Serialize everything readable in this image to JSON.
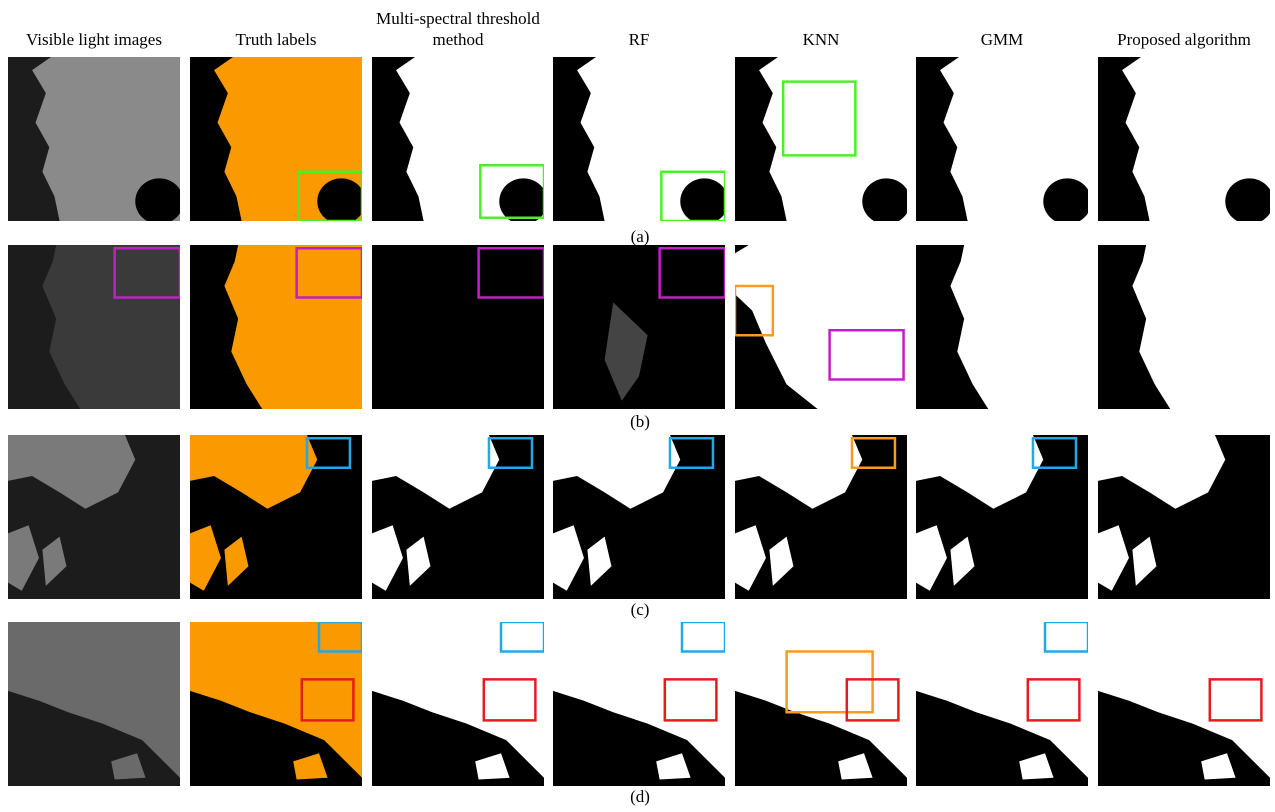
{
  "headers": [
    "Visible light images",
    "Truth labels",
    "Multi-spectral threshold method",
    "RF",
    "KNN",
    "GMM",
    "Proposed algorithm"
  ],
  "row_labels": [
    "(a)",
    "(b)",
    "(c)",
    "(d)"
  ]
}
